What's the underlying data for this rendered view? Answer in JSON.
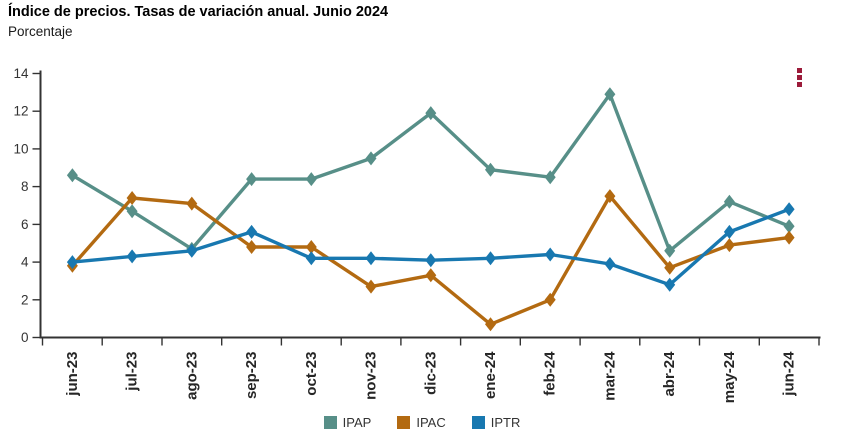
{
  "header": {
    "title": "Índice de precios. Tasas de variación anual. Junio 2024",
    "subtitle": "Porcentaje"
  },
  "context_menu": {
    "icon": "kebab-menu-icon",
    "color": "#9c1b3a"
  },
  "chart_data": {
    "type": "line",
    "title": "Índice de precios. Tasas de variación anual. Junio 2024",
    "subtitle": "Porcentaje",
    "categories": [
      "jun-23",
      "jul-23",
      "ago-23",
      "sep-23",
      "oct-23",
      "nov-23",
      "dic-23",
      "ene-24",
      "feb-24",
      "mar-24",
      "abr-24",
      "may-24",
      "jun-24"
    ],
    "series": [
      {
        "name": "IPAP",
        "color": "#578f88",
        "values": [
          8.6,
          6.7,
          4.7,
          8.4,
          8.4,
          9.5,
          11.9,
          8.9,
          8.5,
          12.9,
          4.6,
          7.2,
          5.9
        ]
      },
      {
        "name": "IPAC",
        "color": "#b36a11",
        "values": [
          3.8,
          7.4,
          7.1,
          4.8,
          4.8,
          2.7,
          3.3,
          0.7,
          2.0,
          7.5,
          3.7,
          4.9,
          5.3
        ]
      },
      {
        "name": "IPTR",
        "color": "#1878b0",
        "values": [
          4.0,
          4.3,
          4.6,
          5.6,
          4.2,
          4.2,
          4.1,
          4.2,
          4.4,
          3.9,
          2.8,
          5.6,
          6.8
        ]
      }
    ],
    "xlabel": "",
    "ylabel": "",
    "ylim": [
      0,
      14
    ],
    "yticks": [
      0,
      2,
      4,
      6,
      8,
      10,
      12,
      14
    ],
    "grid": false,
    "marker": "diamond",
    "legend_position": "bottom-center",
    "axis_color": "#333333",
    "x_label_rotation": -90
  }
}
